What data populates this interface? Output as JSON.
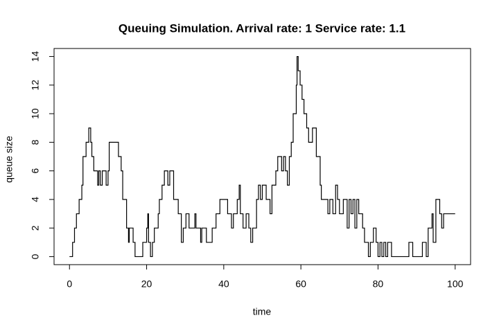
{
  "chart_data": {
    "type": "step",
    "title": "Queuing Simulation. Arrival rate: 1 Service rate: 1.1",
    "x_label": "time",
    "y_label": "queue size",
    "x": [
      0,
      0.8,
      1.3,
      1.8,
      2.5,
      3.2,
      3.5,
      4.3,
      5,
      5.5,
      5.8,
      6.3,
      7.3,
      7.6,
      8,
      8.5,
      9.5,
      10,
      10.3,
      12.7,
      13.4,
      13.8,
      14.8,
      15.3,
      15.5,
      16.5,
      17,
      19,
      20,
      20.3,
      20.5,
      21,
      21.5,
      22,
      23,
      23.3,
      24,
      24.6,
      25.5,
      26,
      27,
      28.2,
      29,
      29.5,
      30.2,
      31,
      32.5,
      32.8,
      34,
      34.3,
      35.5,
      37,
      38,
      39,
      41,
      42,
      42.5,
      43.5,
      44,
      44.3,
      45,
      45.8,
      46.5,
      47,
      47.5,
      48.5,
      49,
      49.5,
      50,
      51,
      52,
      52.5,
      53.5,
      54,
      55,
      55.5,
      56,
      56.5,
      57,
      57.5,
      58,
      58.8,
      59,
      59.3,
      59.8,
      60.3,
      60.8,
      61.5,
      62,
      63,
      64,
      65,
      65.3,
      67,
      67.5,
      68.3,
      69,
      69.5,
      70,
      71,
      72,
      72.5,
      73,
      73.5,
      74,
      74.5,
      75,
      76,
      76.5,
      77.5,
      78,
      78.8,
      79.5,
      80,
      80.5,
      81,
      81.5,
      82,
      82.5,
      83.5,
      88,
      89,
      91.5,
      92.5,
      93,
      94,
      94.3,
      95,
      96,
      96.5,
      97,
      98,
      100
    ],
    "values": [
      0,
      1,
      2,
      3,
      4,
      5,
      7,
      8,
      9,
      8,
      7,
      6,
      5,
      6,
      5,
      6,
      5,
      6,
      8,
      7,
      6,
      4,
      2,
      1,
      2,
      1,
      0,
      1,
      2,
      3,
      1,
      0,
      1,
      2,
      3,
      4,
      5,
      6,
      5,
      6,
      4,
      3,
      1,
      2,
      3,
      2,
      3,
      2,
      1,
      2,
      1,
      2,
      3,
      4,
      3,
      2,
      3,
      4,
      5,
      3,
      2,
      3,
      2,
      1,
      2,
      4,
      5,
      4,
      5,
      4,
      3,
      5,
      6,
      7,
      6,
      7,
      6,
      5,
      7,
      8,
      10,
      12,
      14,
      13,
      12,
      11,
      10,
      9,
      8,
      9,
      7,
      5,
      4,
      3,
      4,
      3,
      5,
      4,
      3,
      4,
      2,
      4,
      3,
      4,
      2,
      4,
      3,
      2,
      1,
      0,
      1,
      2,
      1,
      0,
      1,
      0,
      1,
      0,
      1,
      0,
      1,
      0,
      1,
      0,
      2,
      3,
      1,
      4,
      3,
      2,
      3,
      3,
      3
    ],
    "color": "#000000",
    "xlim": [
      -4,
      104
    ],
    "ylim": [
      -0.56,
      14.56
    ],
    "xticks": [
      0,
      20,
      40,
      60,
      80,
      100
    ],
    "yticks": [
      0,
      2,
      4,
      6,
      8,
      10,
      12,
      14
    ]
  }
}
